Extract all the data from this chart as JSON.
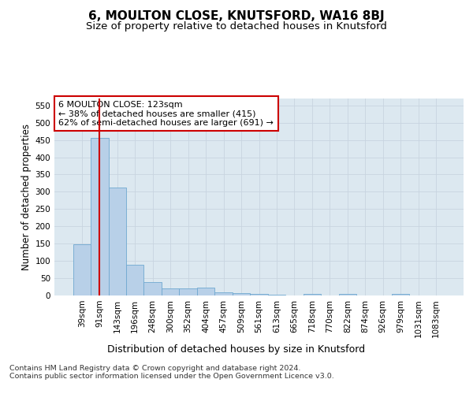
{
  "title1": "6, MOULTON CLOSE, KNUTSFORD, WA16 8BJ",
  "title2": "Size of property relative to detached houses in Knutsford",
  "xlabel": "Distribution of detached houses by size in Knutsford",
  "ylabel": "Number of detached properties",
  "categories": [
    "39sqm",
    "91sqm",
    "143sqm",
    "196sqm",
    "248sqm",
    "300sqm",
    "352sqm",
    "404sqm",
    "457sqm",
    "509sqm",
    "561sqm",
    "613sqm",
    "665sqm",
    "718sqm",
    "770sqm",
    "822sqm",
    "874sqm",
    "926sqm",
    "979sqm",
    "1031sqm",
    "1083sqm"
  ],
  "values": [
    148,
    455,
    313,
    90,
    38,
    20,
    20,
    22,
    10,
    7,
    5,
    2,
    0,
    4,
    0,
    4,
    0,
    0,
    4,
    0,
    0
  ],
  "bar_color": "#b8d0e8",
  "bar_edge_color": "#6fa8d0",
  "vline_color": "#cc0000",
  "vline_x": 1,
  "annotation_text": "6 MOULTON CLOSE: 123sqm\n← 38% of detached houses are smaller (415)\n62% of semi-detached houses are larger (691) →",
  "annotation_box_color": "#ffffff",
  "annotation_box_edge": "#cc0000",
  "ylim": [
    0,
    570
  ],
  "yticks": [
    0,
    50,
    100,
    150,
    200,
    250,
    300,
    350,
    400,
    450,
    500,
    550
  ],
  "footnote": "Contains HM Land Registry data © Crown copyright and database right 2024.\nContains public sector information licensed under the Open Government Licence v3.0.",
  "grid_color": "#c8d4e0",
  "bg_color": "#dce8f0",
  "title1_fontsize": 11,
  "title2_fontsize": 9.5,
  "xlabel_fontsize": 9,
  "ylabel_fontsize": 8.5,
  "tick_fontsize": 7.5,
  "annot_fontsize": 8,
  "footnote_fontsize": 6.8
}
